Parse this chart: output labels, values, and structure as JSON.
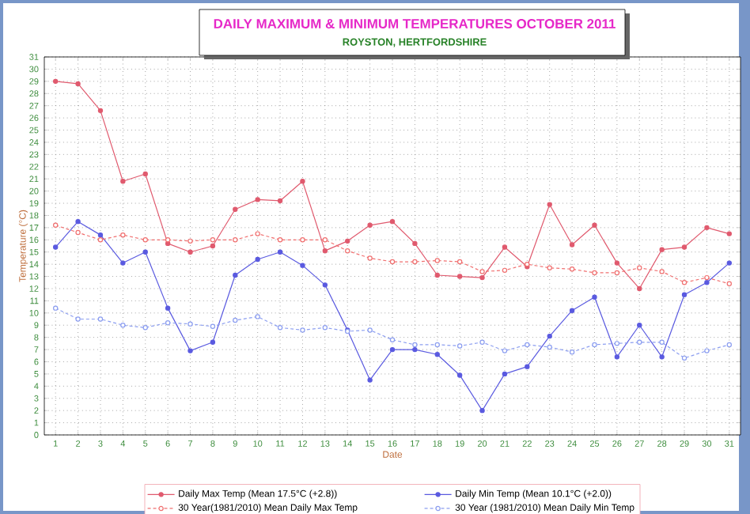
{
  "chart_data": {
    "type": "line",
    "title": "DAILY MAXIMUM &  MINIMUM  TEMPERATURES   OCTOBER 2011",
    "subtitle": "ROYSTON, HERTFORDSHIRE",
    "xlabel": "Date",
    "ylabel": "Temperature (°C)",
    "x": [
      1,
      2,
      3,
      4,
      5,
      6,
      7,
      8,
      9,
      10,
      11,
      12,
      13,
      14,
      15,
      16,
      17,
      18,
      19,
      20,
      21,
      22,
      23,
      24,
      25,
      26,
      27,
      28,
      29,
      30,
      31
    ],
    "series": [
      {
        "name": "Daily Max Temp (Mean 17.5°C (+2.8))",
        "color": "#e05a6e",
        "marker": "circle",
        "line_style": "solid",
        "values": [
          29.0,
          28.8,
          26.6,
          20.8,
          21.4,
          15.7,
          15.0,
          15.5,
          18.5,
          19.3,
          19.2,
          20.8,
          15.1,
          15.9,
          17.2,
          17.5,
          15.7,
          13.1,
          13.0,
          12.9,
          15.4,
          13.8,
          18.9,
          15.6,
          17.2,
          14.1,
          12.0,
          15.2,
          15.4,
          17.0,
          16.5
        ]
      },
      {
        "name": "Daily Min Temp (Mean 10.1°C (+2.0))",
        "color": "#5a5ae0",
        "marker": "circle",
        "line_style": "solid",
        "values": [
          15.4,
          17.5,
          16.4,
          14.1,
          15.0,
          10.4,
          6.9,
          7.6,
          13.1,
          14.4,
          15.0,
          13.9,
          12.3,
          8.6,
          4.5,
          7.0,
          7.0,
          6.6,
          4.9,
          2.0,
          5.0,
          5.6,
          8.1,
          10.2,
          11.3,
          6.4,
          9.0,
          6.4,
          11.5,
          12.5,
          14.1
        ]
      },
      {
        "name": "30 Year(1981/2010)  Mean Daily Max Temp",
        "color": "#f07070",
        "marker": "circle",
        "line_style": "dashed",
        "values": [
          17.2,
          16.6,
          16.0,
          16.4,
          16.0,
          16.0,
          15.9,
          16.0,
          16.0,
          16.5,
          16.0,
          16.0,
          16.0,
          15.1,
          14.5,
          14.2,
          14.2,
          14.3,
          14.2,
          13.4,
          13.5,
          14.0,
          13.7,
          13.6,
          13.3,
          13.3,
          13.7,
          13.4,
          12.5,
          12.9,
          12.4
        ]
      },
      {
        "name": "30 Year (1981/2010) Mean Daily Min Temp",
        "color": "#8c9ef0",
        "marker": "circle",
        "line_style": "dashed",
        "values": [
          10.4,
          9.5,
          9.5,
          9.0,
          8.8,
          9.2,
          9.1,
          8.9,
          9.4,
          9.7,
          8.8,
          8.6,
          8.8,
          8.5,
          8.6,
          7.8,
          7.4,
          7.4,
          7.3,
          7.6,
          6.9,
          7.4,
          7.2,
          6.8,
          7.4,
          7.5,
          7.6,
          7.6,
          6.3,
          6.9,
          7.4
        ]
      }
    ],
    "xlim": [
      0.5,
      31.5
    ],
    "ylim": [
      0,
      31
    ],
    "xticks": [
      1,
      2,
      3,
      4,
      5,
      6,
      7,
      8,
      9,
      10,
      11,
      12,
      13,
      14,
      15,
      16,
      17,
      18,
      19,
      20,
      21,
      22,
      23,
      24,
      25,
      26,
      27,
      28,
      29,
      30,
      31
    ],
    "yticks": [
      0,
      1,
      2,
      3,
      4,
      5,
      6,
      7,
      8,
      9,
      10,
      11,
      12,
      13,
      14,
      15,
      16,
      17,
      18,
      19,
      20,
      21,
      22,
      23,
      24,
      25,
      26,
      27,
      28,
      29,
      30,
      31
    ],
    "grid": true,
    "legend": "bottom"
  }
}
